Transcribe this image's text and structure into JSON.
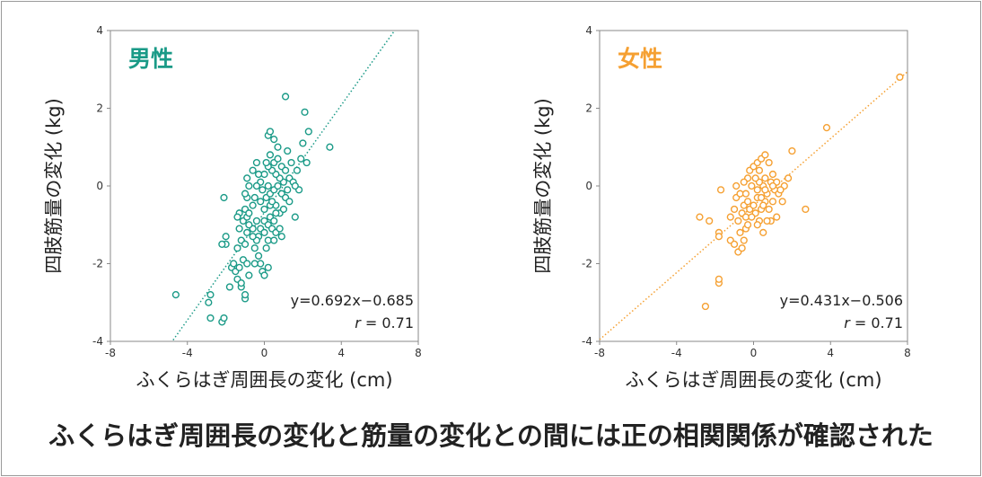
{
  "chart_data": [
    {
      "type": "scatter",
      "title": "男性",
      "xlabel": "ふくらはぎ周囲長の変化 (cm)",
      "ylabel": "四肢筋量の変化 (kg)",
      "xlim": [
        -8,
        8
      ],
      "ylim": [
        -4,
        4
      ],
      "xticks": [
        "-8",
        "-4",
        "0",
        "4",
        "8"
      ],
      "yticks": [
        "-4",
        "-2",
        "0",
        "2",
        "4"
      ],
      "color": "#1a9a87",
      "grid": false,
      "equation": "y=0.692x−0.685",
      "r_label": "r",
      "r_value": "= 0.71",
      "trendline": {
        "slope": 0.692,
        "intercept": -0.685
      },
      "points": [
        [
          -4.6,
          -2.8
        ],
        [
          -2.8,
          -2.8
        ],
        [
          -2.9,
          -3.0
        ],
        [
          -2.8,
          -3.4
        ],
        [
          -2.2,
          -3.5
        ],
        [
          -2.1,
          -3.4
        ],
        [
          -1.8,
          -2.6
        ],
        [
          -2.0,
          -1.5
        ],
        [
          -2.2,
          -1.5
        ],
        [
          -2.0,
          -1.3
        ],
        [
          -2.1,
          -0.3
        ],
        [
          -1.7,
          -2.1
        ],
        [
          -1.5,
          -2.2
        ],
        [
          -1.4,
          -2.4
        ],
        [
          -1.2,
          -2.6
        ],
        [
          -1.0,
          -2.9
        ],
        [
          -1.0,
          -2.8
        ],
        [
          -1.2,
          -2.5
        ],
        [
          -1.3,
          -2.1
        ],
        [
          -1.1,
          -1.9
        ],
        [
          -0.9,
          -2.0
        ],
        [
          -1.4,
          -1.6
        ],
        [
          -1.2,
          -1.4
        ],
        [
          -1.0,
          -1.5
        ],
        [
          -0.9,
          -1.2
        ],
        [
          -1.3,
          -1.1
        ],
        [
          -1.1,
          -0.9
        ],
        [
          -0.9,
          -0.8
        ],
        [
          -1.3,
          -0.7
        ],
        [
          -1.0,
          -0.6
        ],
        [
          -0.8,
          -0.7
        ],
        [
          -0.9,
          -0.3
        ],
        [
          -0.8,
          0.0
        ],
        [
          -0.9,
          0.2
        ],
        [
          -0.6,
          -0.5
        ],
        [
          -0.5,
          -0.3
        ],
        [
          -0.4,
          -0.9
        ],
        [
          -0.6,
          -1.1
        ],
        [
          -0.3,
          -1.3
        ],
        [
          -0.5,
          -1.6
        ],
        [
          -0.3,
          -1.8
        ],
        [
          -0.2,
          -2.0
        ],
        [
          -0.1,
          -2.2
        ],
        [
          0.0,
          -2.3
        ],
        [
          0.2,
          -2.1
        ],
        [
          -0.4,
          -1.4
        ],
        [
          0.1,
          -1.6
        ],
        [
          0.2,
          -1.4
        ],
        [
          -0.2,
          -1.1
        ],
        [
          0.0,
          -0.9
        ],
        [
          0.2,
          -1.0
        ],
        [
          0.3,
          -0.8
        ],
        [
          0.4,
          -1.1
        ],
        [
          0.5,
          -0.9
        ],
        [
          0.6,
          -1.2
        ],
        [
          0.5,
          -1.4
        ],
        [
          0.8,
          -1.1
        ],
        [
          0.9,
          -1.3
        ],
        [
          0.8,
          -0.7
        ],
        [
          1.0,
          -0.6
        ],
        [
          0.6,
          -0.5
        ],
        [
          0.3,
          -0.5
        ],
        [
          0.0,
          -0.6
        ],
        [
          -0.2,
          -0.4
        ],
        [
          0.1,
          -0.3
        ],
        [
          0.3,
          -0.2
        ],
        [
          0.5,
          -0.1
        ],
        [
          0.7,
          0.0
        ],
        [
          0.9,
          -0.2
        ],
        [
          1.1,
          -0.3
        ],
        [
          1.2,
          -0.1
        ],
        [
          1.0,
          0.1
        ],
        [
          0.8,
          0.2
        ],
        [
          0.6,
          0.3
        ],
        [
          0.4,
          0.4
        ],
        [
          0.2,
          0.5
        ],
        [
          0.0,
          0.3
        ],
        [
          -0.2,
          0.1
        ],
        [
          -0.4,
          0.0
        ],
        [
          -0.3,
          0.3
        ],
        [
          0.1,
          0.6
        ],
        [
          0.3,
          0.8
        ],
        [
          0.5,
          0.6
        ],
        [
          0.7,
          0.7
        ],
        [
          0.9,
          0.5
        ],
        [
          1.1,
          0.4
        ],
        [
          1.3,
          0.2
        ],
        [
          1.5,
          0.1
        ],
        [
          1.7,
          0.4
        ],
        [
          1.9,
          0.7
        ],
        [
          2.0,
          1.1
        ],
        [
          2.3,
          1.4
        ],
        [
          2.2,
          0.6
        ],
        [
          1.6,
          -0.8
        ],
        [
          1.8,
          -0.1
        ],
        [
          1.6,
          0.0
        ],
        [
          1.4,
          0.6
        ],
        [
          1.2,
          0.9
        ],
        [
          0.7,
          1.0
        ],
        [
          0.5,
          1.2
        ],
        [
          0.2,
          1.3
        ],
        [
          0.3,
          1.4
        ],
        [
          -0.4,
          0.6
        ],
        [
          -0.6,
          0.4
        ],
        [
          -1.0,
          -0.2
        ],
        [
          1.1,
          2.3
        ],
        [
          2.1,
          1.9
        ],
        [
          3.4,
          1.0
        ],
        [
          -1.6,
          -2.0
        ],
        [
          -0.8,
          -2.3
        ],
        [
          -0.5,
          -2.0
        ],
        [
          0.4,
          -0.4
        ],
        [
          0.6,
          -0.7
        ],
        [
          1.3,
          -0.4
        ],
        [
          -0.1,
          -0.1
        ],
        [
          0.2,
          0.0
        ],
        [
          0.0,
          -1.2
        ],
        [
          -0.6,
          -1.3
        ],
        [
          -0.8,
          -1.0
        ],
        [
          -1.4,
          -0.8
        ]
      ]
    },
    {
      "type": "scatter",
      "title": "女性",
      "xlabel": "ふくらはぎ周囲長の変化 (cm)",
      "ylabel": "四肢筋量の変化 (kg)",
      "xlim": [
        -8,
        8
      ],
      "ylim": [
        -4,
        4
      ],
      "xticks": [
        "-8",
        "-4",
        "0",
        "4",
        "8"
      ],
      "yticks": [
        "-4",
        "-2",
        "0",
        "2",
        "4"
      ],
      "color": "#f5a032",
      "grid": false,
      "equation": "y=0.431x−0.506",
      "r_label": "r",
      "r_value": "= 0.71",
      "trendline": {
        "slope": 0.431,
        "intercept": -0.506
      },
      "points": [
        [
          -2.5,
          -3.1
        ],
        [
          -1.8,
          -2.5
        ],
        [
          -1.8,
          -2.4
        ],
        [
          -2.3,
          -0.9
        ],
        [
          -2.8,
          -0.8
        ],
        [
          -1.8,
          -1.2
        ],
        [
          -1.8,
          -1.3
        ],
        [
          -1.7,
          -0.1
        ],
        [
          -1.2,
          -1.4
        ],
        [
          -1.0,
          -1.5
        ],
        [
          -0.8,
          -1.7
        ],
        [
          -0.6,
          -1.6
        ],
        [
          -0.5,
          -1.4
        ],
        [
          -0.7,
          -1.2
        ],
        [
          -0.4,
          -1.1
        ],
        [
          -0.3,
          -1.0
        ],
        [
          -0.8,
          -0.9
        ],
        [
          -0.6,
          -0.7
        ],
        [
          -0.4,
          -0.8
        ],
        [
          -0.2,
          -0.6
        ],
        [
          -0.5,
          -0.5
        ],
        [
          -0.3,
          -0.4
        ],
        [
          -1.0,
          -0.6
        ],
        [
          -1.2,
          -0.8
        ],
        [
          -0.9,
          -0.3
        ],
        [
          -0.7,
          -0.2
        ],
        [
          0.0,
          -0.5
        ],
        [
          0.2,
          -0.3
        ],
        [
          0.1,
          -0.7
        ],
        [
          0.3,
          -0.9
        ],
        [
          0.5,
          -1.2
        ],
        [
          0.4,
          -0.6
        ],
        [
          0.6,
          -0.4
        ],
        [
          0.7,
          -0.2
        ],
        [
          0.5,
          0.0
        ],
        [
          0.3,
          0.1
        ],
        [
          0.1,
          0.2
        ],
        [
          -0.1,
          0.0
        ],
        [
          -0.3,
          0.2
        ],
        [
          -0.5,
          0.1
        ],
        [
          -0.2,
          0.4
        ],
        [
          0.0,
          0.5
        ],
        [
          0.2,
          0.6
        ],
        [
          0.4,
          0.7
        ],
        [
          0.6,
          0.8
        ],
        [
          0.8,
          0.6
        ],
        [
          1.0,
          0.3
        ],
        [
          0.9,
          0.1
        ],
        [
          1.1,
          -0.1
        ],
        [
          1.3,
          -0.2
        ],
        [
          1.2,
          0.1
        ],
        [
          1.0,
          -0.4
        ],
        [
          0.8,
          -0.6
        ],
        [
          1.2,
          -0.8
        ],
        [
          1.5,
          -0.4
        ],
        [
          1.6,
          0.0
        ],
        [
          1.8,
          0.2
        ],
        [
          2.0,
          0.9
        ],
        [
          2.7,
          -0.6
        ],
        [
          3.8,
          1.5
        ],
        [
          7.6,
          2.8
        ],
        [
          0.9,
          -0.9
        ],
        [
          0.4,
          -0.3
        ],
        [
          0.2,
          -0.1
        ],
        [
          -0.4,
          -0.2
        ],
        [
          0.6,
          0.2
        ],
        [
          0.3,
          0.4
        ],
        [
          -0.9,
          0.0
        ],
        [
          0.7,
          -0.9
        ],
        [
          0.5,
          -0.5
        ],
        [
          1.4,
          -0.1
        ],
        [
          1.0,
          0.0
        ],
        [
          0.2,
          -1.0
        ],
        [
          -0.1,
          -0.8
        ],
        [
          0.6,
          -0.1
        ]
      ]
    }
  ],
  "caption": "ふくらはぎ周囲長の変化と筋量の変化との間には正の相関関係が確認された"
}
